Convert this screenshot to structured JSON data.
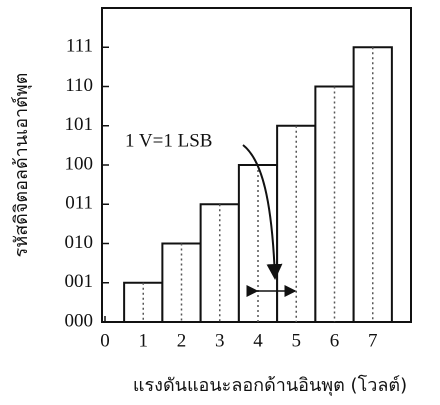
{
  "chart_data": {
    "type": "histogram",
    "xlabel": "แรงดันแอนะลอกด้านอินพุต (โวลต์)",
    "ylabel": "รหัสดิจิตอลด้านเอาต์พุต",
    "annotation": "1 V=1 LSB",
    "bins": [
      0.5,
      1.5,
      2.5,
      3.5,
      4.5,
      5.5,
      6.5,
      7.5
    ],
    "values": [
      1,
      2,
      3,
      4,
      5,
      6,
      7
    ],
    "xlim": [
      0,
      8
    ],
    "ylim": [
      0,
      8
    ],
    "xticks": [
      0,
      1,
      2,
      3,
      4,
      5,
      6,
      7
    ],
    "yticks": [
      {
        "value": 0,
        "label": "000"
      },
      {
        "value": 1,
        "label": "001"
      },
      {
        "value": 2,
        "label": "010"
      },
      {
        "value": 3,
        "label": "011"
      },
      {
        "value": 4,
        "label": "100"
      },
      {
        "value": 5,
        "label": "101"
      },
      {
        "value": 6,
        "label": "110"
      },
      {
        "value": 7,
        "label": "111"
      }
    ],
    "color": "#ffffff"
  }
}
